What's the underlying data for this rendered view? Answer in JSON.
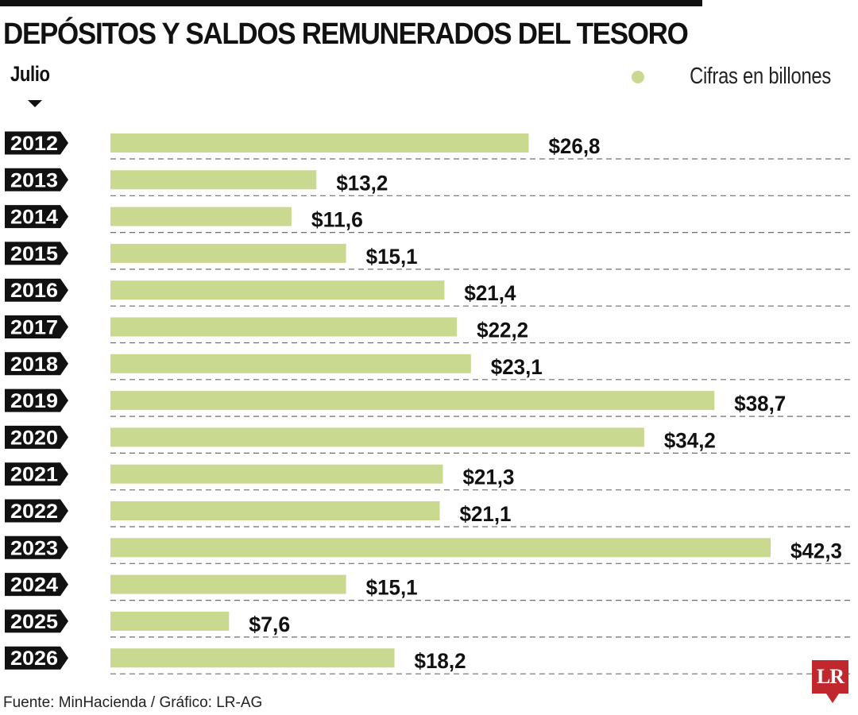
{
  "header": {
    "title": "DEPÓSITOS Y SALDOS REMUNERADOS DEL TESORO",
    "subtitle": "Julio",
    "legend_label": "Cifras en billones"
  },
  "footer": {
    "source": "Fuente: MinHacienda / Gráfico: LR-AG",
    "logo_text": "LR"
  },
  "colors": {
    "bar": "#c9d98f",
    "label_tag": "#111111",
    "grid": "#6f6f6f",
    "logo": "#c0282d"
  },
  "chart_data": {
    "type": "bar",
    "orientation": "horizontal",
    "title": "DEPÓSITOS Y SALDOS REMUNERADOS DEL TESORO",
    "subtitle": "Julio",
    "legend": "Cifras en billones",
    "categories": [
      "2012",
      "2013",
      "2014",
      "2015",
      "2016",
      "2017",
      "2018",
      "2019",
      "2020",
      "2021",
      "2022",
      "2023",
      "2024",
      "2025",
      "2026"
    ],
    "values": [
      26.8,
      13.2,
      11.6,
      15.1,
      21.4,
      22.2,
      23.1,
      38.7,
      34.2,
      21.3,
      21.1,
      42.3,
      15.1,
      7.6,
      18.2
    ],
    "value_labels": [
      "$26,8",
      "$13,2",
      "$11,6",
      "$15,1",
      "$21,4",
      "$22,2",
      "$23,1",
      "$38,7",
      "$34,2",
      "$21,3",
      "$21,1",
      "$42,3",
      "$15,1",
      "$7,6",
      "$18,2"
    ],
    "xlim": [
      0,
      42.3
    ],
    "grid": "dashed row separators"
  }
}
